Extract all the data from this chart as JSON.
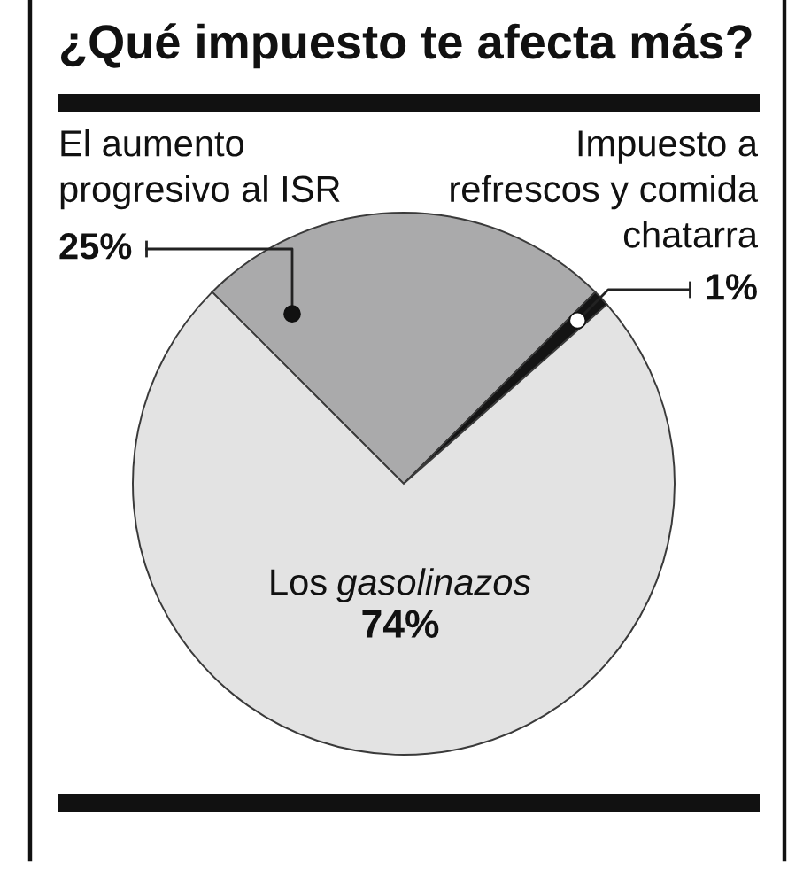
{
  "chart_data": {
    "type": "pie",
    "title": "¿Qué impuesto te afecta más?",
    "categories": [
      "El aumento\nprogresivo al ISR",
      "Impuesto a\nrefrescos y comida\nchatarra",
      "Los gasolinazos"
    ],
    "values": [
      25,
      1,
      74
    ],
    "colors": [
      "#aaaaab",
      "#141414",
      "#e3e3e3"
    ],
    "value_labels": [
      "25%",
      "1%",
      "74%"
    ]
  }
}
